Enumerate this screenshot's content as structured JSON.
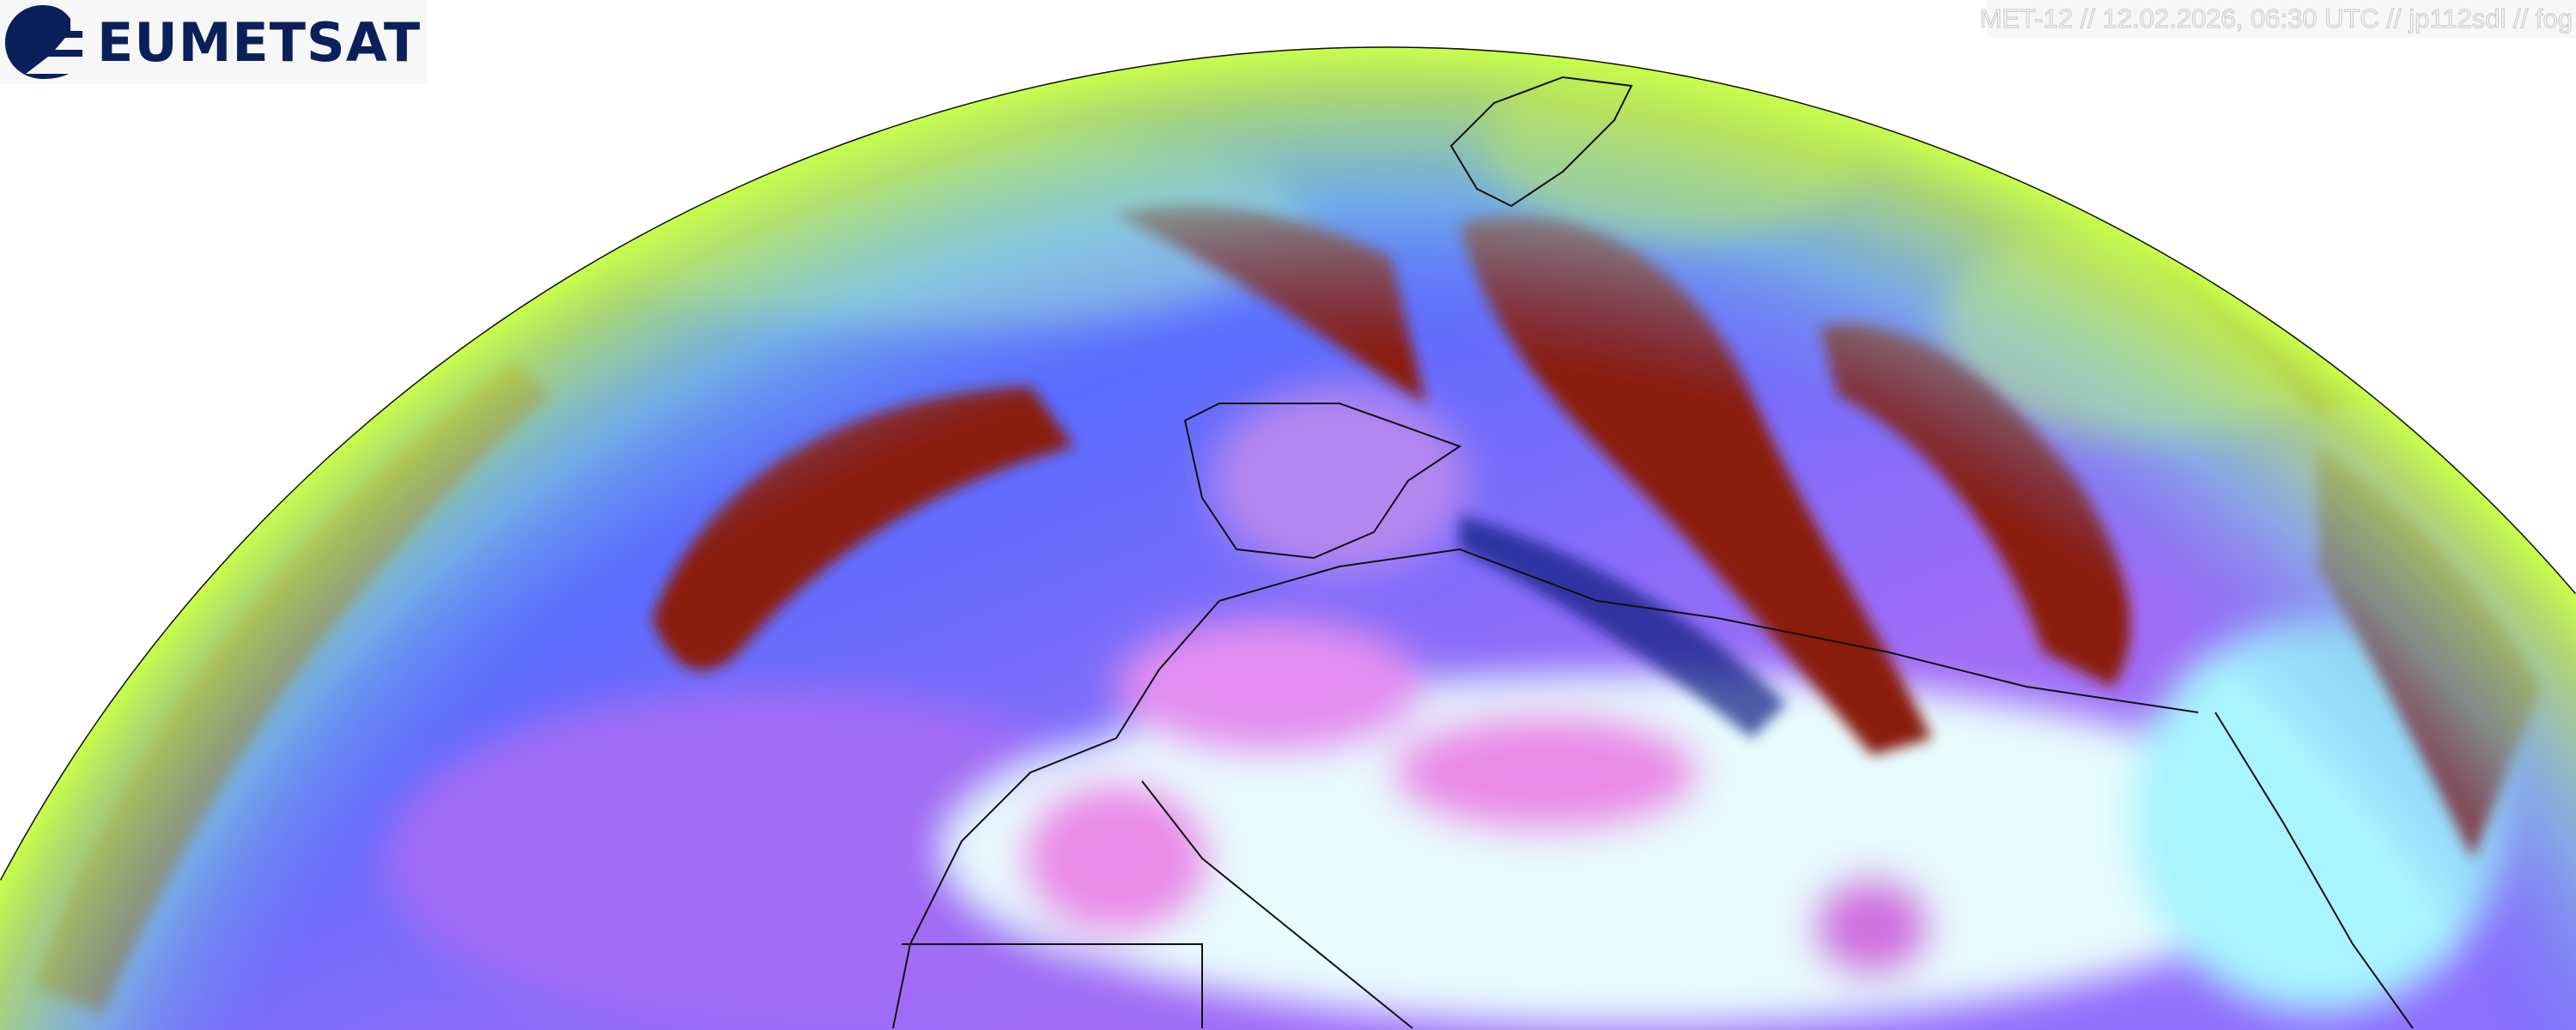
{
  "logo": {
    "text": "EUMETSAT"
  },
  "caption": {
    "text": "MET-12 // 12.02.2026, 06:30 UTC // jp112sdl // fog"
  },
  "colors": {
    "ocean_clear": "#5a6cff",
    "ocean_violet": "#a26cf5",
    "desert": "#e8fbff",
    "desert_pink": "#e98be8",
    "thick_cloud": "#8a1a0c",
    "snow_limb": "#c8ff4a",
    "logo_navy": "#0b1f5a"
  }
}
